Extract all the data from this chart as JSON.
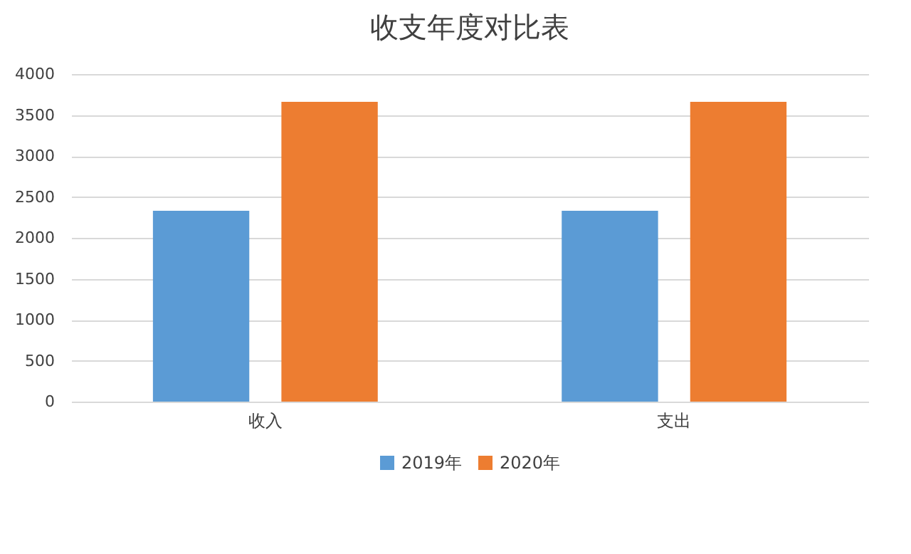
{
  "chart_data": {
    "type": "bar",
    "title": "收支年度对比表",
    "categories": [
      "收入",
      "支出"
    ],
    "series": [
      {
        "name": "2019年",
        "color": "#5b9bd5",
        "values": [
          2330,
          2330
        ]
      },
      {
        "name": "2020年",
        "color": "#ed7d31",
        "values": [
          3660,
          3660
        ]
      }
    ],
    "ylim": [
      0,
      4000
    ],
    "yticks": [
      0,
      500,
      1000,
      1500,
      2000,
      2500,
      3000,
      3500,
      4000
    ],
    "grid": "y",
    "legend": "bottom"
  }
}
